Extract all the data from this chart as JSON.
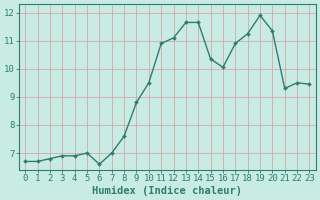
{
  "x": [
    0,
    1,
    2,
    3,
    4,
    5,
    6,
    7,
    8,
    9,
    10,
    11,
    12,
    13,
    14,
    15,
    16,
    17,
    18,
    19,
    20,
    21,
    22,
    23
  ],
  "y": [
    6.7,
    6.7,
    6.8,
    6.9,
    6.9,
    7.0,
    6.6,
    7.0,
    7.6,
    8.8,
    9.5,
    10.9,
    11.1,
    11.65,
    11.65,
    10.35,
    10.05,
    10.9,
    11.25,
    11.9,
    11.35,
    9.3,
    9.5,
    9.45
  ],
  "line_color": "#2e7d6e",
  "marker": "D",
  "marker_size": 2.0,
  "bg_color": "#c8ece4",
  "grid_color": "#d4a8a8",
  "xlabel": "Humidex (Indice chaleur)",
  "xlabel_fontsize": 7.5,
  "tick_fontsize": 6.5,
  "ylim": [
    6.4,
    12.3
  ],
  "xlim": [
    -0.5,
    23.5
  ],
  "yticks": [
    7,
    8,
    9,
    10,
    11,
    12
  ],
  "xticks": [
    0,
    1,
    2,
    3,
    4,
    5,
    6,
    7,
    8,
    9,
    10,
    11,
    12,
    13,
    14,
    15,
    16,
    17,
    18,
    19,
    20,
    21,
    22,
    23
  ],
  "linewidth": 1.0,
  "spine_color": "#2e7d6e",
  "text_color": "#2e7d6e"
}
